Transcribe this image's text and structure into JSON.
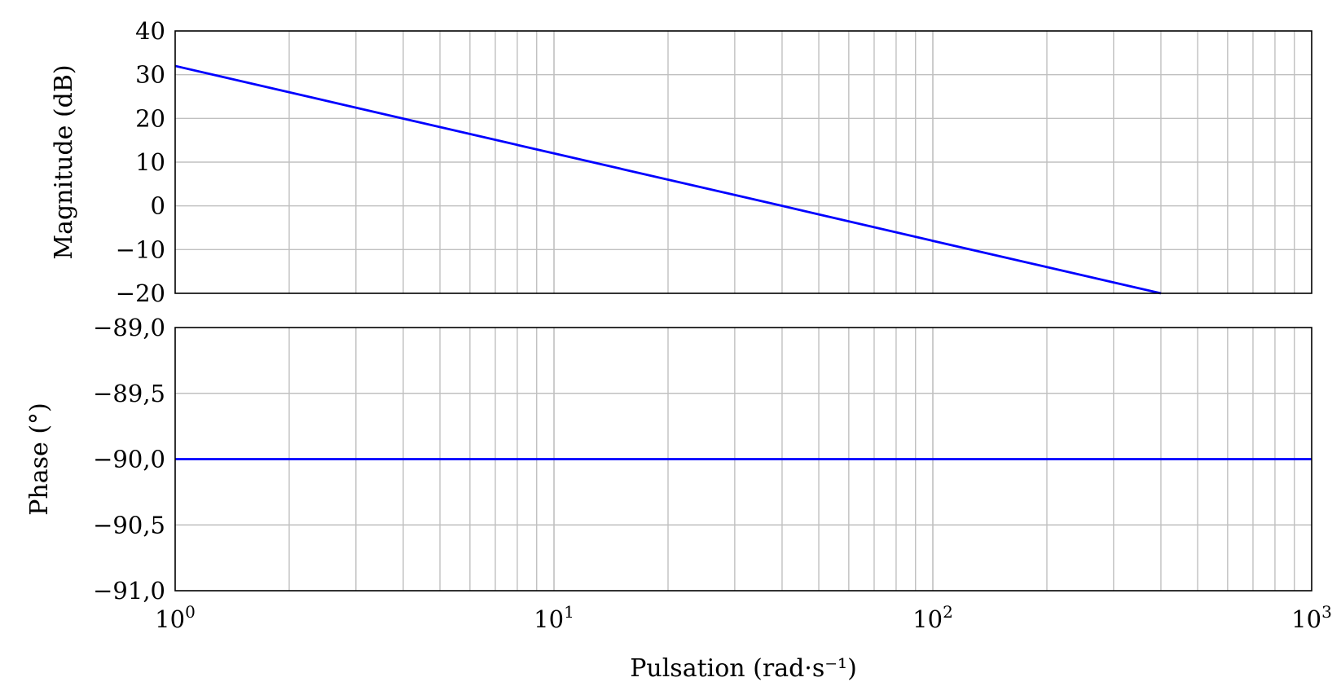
{
  "chart_data": [
    {
      "type": "line",
      "ylabel": "Magnitude (dB)",
      "xscale": "log",
      "xlim": [
        1,
        1000
      ],
      "ylim": [
        -20,
        40
      ],
      "yticks": [
        -20,
        -10,
        0,
        10,
        20,
        30,
        40
      ],
      "ytick_labels": [
        "−20",
        "−10",
        "0",
        "10",
        "20",
        "30",
        "40"
      ],
      "grid": true,
      "series": [
        {
          "x": [
            1,
            10,
            40,
            100,
            400
          ],
          "y": [
            32,
            12,
            0,
            -8,
            -20
          ],
          "color": "#0000ff"
        }
      ]
    },
    {
      "type": "line",
      "xlabel": "Pulsation (rad·s⁻¹)",
      "ylabel": "Phase (°)",
      "xscale": "log",
      "xlim": [
        1,
        1000
      ],
      "ylim": [
        -91.0,
        -89.0
      ],
      "yticks": [
        -91.0,
        -90.5,
        -90.0,
        -89.5,
        -89.0
      ],
      "ytick_labels": [
        "−91,0",
        "−90,5",
        "−90,0",
        "−89,5",
        "−89,0"
      ],
      "xtick_labels": [
        {
          "base": "10",
          "exp": "0"
        },
        {
          "base": "10",
          "exp": "1"
        },
        {
          "base": "10",
          "exp": "2"
        },
        {
          "base": "10",
          "exp": "3"
        }
      ],
      "grid": true,
      "series": [
        {
          "x": [
            1,
            1000
          ],
          "y": [
            -90,
            -90
          ],
          "color": "#0000ff"
        }
      ]
    }
  ]
}
